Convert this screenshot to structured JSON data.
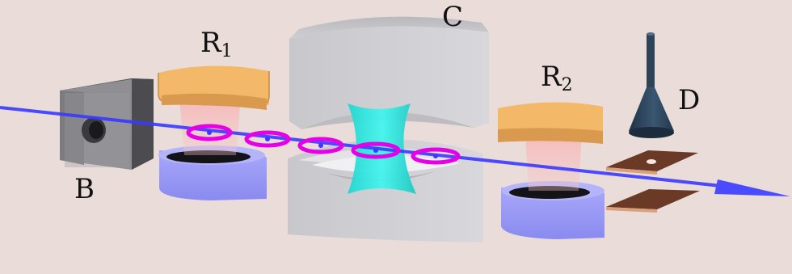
{
  "labels": {
    "oven": "B",
    "ramsey1_main": "R",
    "ramsey1_sub": "1",
    "cavity": "C",
    "ramsey2_main": "R",
    "ramsey2_sub": "2",
    "detector": "D"
  },
  "colors": {
    "background": "#e9dcd9",
    "beam": "#3a3aff",
    "mirror_face": "#f4b968",
    "mirror_lower": "#9f9ff7",
    "cavity_block": "#cfcfd3",
    "cavity_mode": "#2fe8e0",
    "atom_ring": "#e600e6",
    "oven_box": "#6e6e6e",
    "detector_cone": "#2c4358",
    "plate": "#6b3a26"
  },
  "atoms": {
    "count": 5
  }
}
